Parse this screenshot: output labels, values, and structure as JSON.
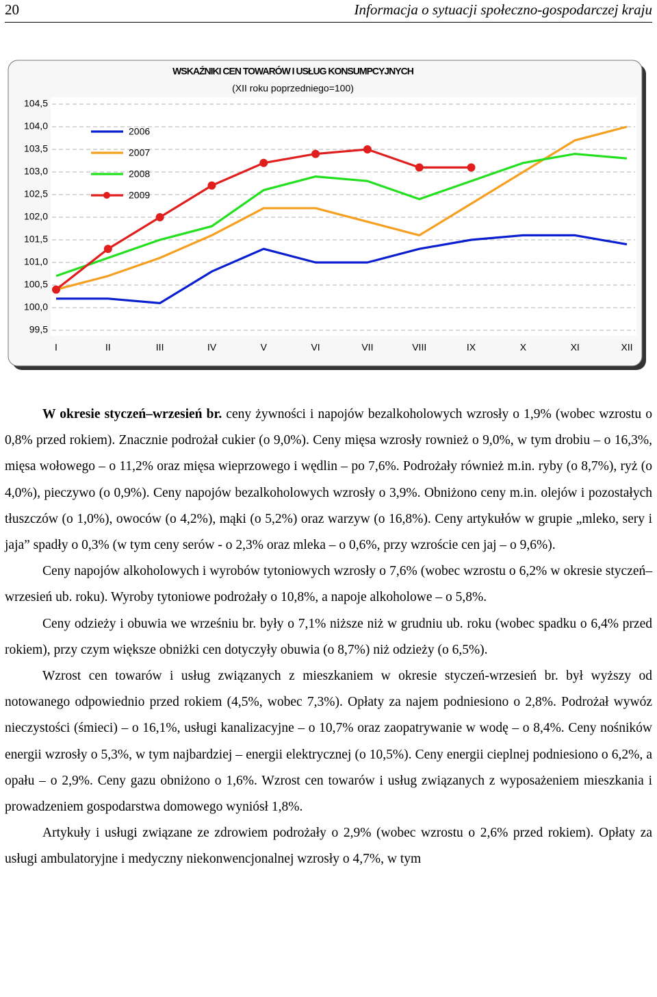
{
  "header": {
    "page_number": "20",
    "title": "Informacja o sytuacji społeczno-gospodarczej kraju"
  },
  "chart_data": {
    "type": "line",
    "title": "WSKAŹNIKI CEN TOWARÓW I USŁUG KONSUMPCYJNYCH",
    "subtitle": "(XII roku poprzedniego=100)",
    "categories": [
      "I",
      "II",
      "III",
      "IV",
      "V",
      "VI",
      "VII",
      "VIII",
      "IX",
      "X",
      "XI",
      "XII"
    ],
    "series": [
      {
        "name": "2006",
        "color": "#0a1fd0",
        "values": [
          100.2,
          100.2,
          100.1,
          100.8,
          101.3,
          101.0,
          101.0,
          101.3,
          101.5,
          101.6,
          101.6,
          101.4
        ]
      },
      {
        "name": "2007",
        "color": "#f5a020",
        "values": [
          100.4,
          100.7,
          101.1,
          101.6,
          102.2,
          102.2,
          101.9,
          101.6,
          102.3,
          103.0,
          103.7,
          104.0
        ]
      },
      {
        "name": "2008",
        "color": "#22e01e",
        "values": [
          100.7,
          101.1,
          101.5,
          101.8,
          102.6,
          102.9,
          102.8,
          102.4,
          102.8,
          103.2,
          103.4,
          103.3
        ]
      },
      {
        "name": "2009",
        "color": "#e01e1e",
        "marker": "circle",
        "values": [
          100.4,
          101.3,
          102.0,
          102.7,
          103.2,
          103.4,
          103.5,
          103.1,
          103.1,
          null,
          null,
          null
        ]
      }
    ],
    "ylim": [
      99.5,
      104.5
    ],
    "yticks": [
      {
        "value": 99.5,
        "label": "99,5"
      },
      {
        "value": 100.0,
        "label": "100,0"
      },
      {
        "value": 100.5,
        "label": "100,5"
      },
      {
        "value": 101.0,
        "label": "101,0"
      },
      {
        "value": 101.5,
        "label": "101,5"
      },
      {
        "value": 102.0,
        "label": "102,0"
      },
      {
        "value": 102.5,
        "label": "102,5"
      },
      {
        "value": 103.0,
        "label": "103,0"
      },
      {
        "value": 103.5,
        "label": "103,5"
      },
      {
        "value": 104.0,
        "label": "104,0"
      },
      {
        "value": 104.5,
        "label": "104,5"
      }
    ],
    "grid": true,
    "legend": "top-left"
  },
  "paragraphs": [
    {
      "lead": "W okresie styczeń–wrzesień br.",
      "text": " ceny żywności i napojów bezalkoholowych wzrosły o 1,9% (wobec wzrostu o 0,8% przed rokiem). Znacznie podrożał cukier (o 9,0%). Ceny mięsa wzrosły rownież o 9,0%, w tym drobiu – o 16,3%, mięsa wołowego – o 11,2% oraz mięsa wieprzowego i wędlin – po 7,6%. Podrożały również m.in. ryby (o 8,7%), ryż (o 4,0%), pieczywo (o 0,9%). Ceny napojów bezalkoholowych wzrosły o 3,9%. Obniżono ceny m.in. olejów i pozostałych tłuszczów (o 1,0%), owoców (o 4,2%), mąki (o 5,2%) oraz warzyw (o 16,8%). Ceny artykułów w grupie „mleko, sery i jaja” spadły o 0,3% (w tym ceny serów - o 2,3% oraz mleka – o 0,6%, przy wzroście cen jaj – o 9,6%)."
    },
    {
      "text": "Ceny napojów alkoholowych i wyrobów tytoniowych wzrosły o 7,6% (wobec wzrostu o 6,2% w okresie styczeń–wrzesień ub. roku). Wyroby tytoniowe podrożały o 10,8%, a napoje alkoholowe – o 5,8%."
    },
    {
      "text": "Ceny odzieży i obuwia we wrześniu br. były o 7,1% niższe niż w grudniu ub. roku (wobec spadku o 6,4% przed rokiem), przy czym większe obniżki cen dotyczyły obuwia (o 8,7%) niż odzieży (o 6,5%)."
    },
    {
      "text": "Wzrost cen towarów i usług związanych z mieszkaniem w okresie styczeń-wrzesień br. był wyższy od notowanego odpowiednio przed rokiem (4,5%, wobec 7,3%). Opłaty za najem podniesiono o 2,8%. Podrożał wywóz nieczystości (śmieci) – o 16,1%, usługi kanalizacyjne – o 10,7% oraz zaopatrywanie w wodę – o 8,4%. Ceny nośników energii wzrosły o 5,3%, w tym najbardziej – energii elektrycznej (o 10,5%). Ceny energii cieplnej podniesiono o 6,2%, a opału – o 2,9%. Ceny gazu obniżono o 1,6%. Wzrost cen towarów i usług związanych z wyposażeniem mieszkania i prowadzeniem gospodarstwa domowego wyniósł 1,8%."
    },
    {
      "text": "Artykuły i usługi związane ze zdrowiem podrożały o 2,9% (wobec wzrostu o 2,6% przed rokiem). Opłaty za usługi ambulatoryjne i medyczny niekonwencjonalnej wzrosły o 4,7%, w tym"
    }
  ]
}
